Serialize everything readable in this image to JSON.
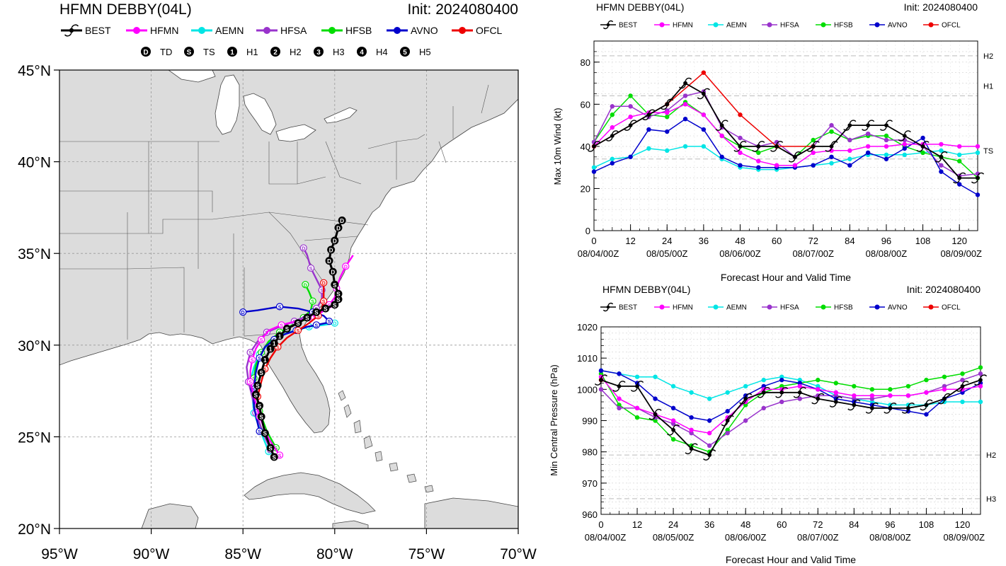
{
  "map": {
    "title": "HFMN DEBBY(04L)",
    "init": "Init: 2024080400",
    "legend": [
      {
        "name": "BEST",
        "color": "#000000"
      },
      {
        "name": "HFMN",
        "color": "#ff00ff"
      },
      {
        "name": "AEMN",
        "color": "#00e5e5"
      },
      {
        "name": "HFSA",
        "color": "#9933cc"
      },
      {
        "name": "HFSB",
        "color": "#00dd00"
      },
      {
        "name": "AVNO",
        "color": "#0000cc"
      },
      {
        "name": "OFCL",
        "color": "#ee0000"
      }
    ],
    "intensity_legend": [
      {
        "symbol": "D",
        "label": "TD"
      },
      {
        "symbol": "S",
        "label": "TS"
      },
      {
        "symbol": "1",
        "label": "H1"
      },
      {
        "symbol": "2",
        "label": "H2"
      },
      {
        "symbol": "3",
        "label": "H3"
      },
      {
        "symbol": "4",
        "label": "H4"
      },
      {
        "symbol": "5",
        "label": "H5"
      }
    ],
    "lat_ticks": [
      "20°N",
      "25°N",
      "30°N",
      "35°N",
      "40°N",
      "45°N"
    ],
    "lon_ticks": [
      "95°W",
      "90°W",
      "85°W",
      "80°W",
      "75°W",
      "70°W"
    ],
    "lat_range": [
      20,
      45
    ],
    "lon_range": [
      -95,
      -70
    ],
    "tracks": {
      "BEST": [
        [
          -83.3,
          23.9
        ],
        [
          -83.5,
          24.4
        ],
        [
          -83.8,
          25.2
        ],
        [
          -84.0,
          26.1
        ],
        [
          -84.1,
          26.7
        ],
        [
          -84.3,
          27.3
        ],
        [
          -84.2,
          27.8
        ],
        [
          -84.0,
          28.5
        ],
        [
          -83.8,
          29.2
        ],
        [
          -83.5,
          29.8
        ],
        [
          -83.3,
          30.1
        ],
        [
          -83.0,
          30.5
        ],
        [
          -82.6,
          30.9
        ],
        [
          -82.0,
          31.2
        ],
        [
          -81.5,
          31.5
        ],
        [
          -81.0,
          31.8
        ],
        [
          -80.5,
          32.0
        ],
        [
          -80.0,
          32.2
        ],
        [
          -79.8,
          32.5
        ],
        [
          -79.8,
          32.8
        ],
        [
          -80.0,
          33.3
        ],
        [
          -80.1,
          34.0
        ],
        [
          -80.3,
          34.6
        ],
        [
          -80.2,
          35.2
        ],
        [
          -80.0,
          35.7
        ],
        [
          -79.8,
          36.4
        ],
        [
          -79.6,
          36.8
        ]
      ],
      "HFMN": [
        [
          -83.0,
          24.0
        ],
        [
          -83.6,
          24.9
        ],
        [
          -84.1,
          26.1
        ],
        [
          -84.4,
          27.2
        ],
        [
          -84.6,
          28.0
        ],
        [
          -84.6,
          28.6
        ],
        [
          -84.5,
          29.2
        ],
        [
          -84.3,
          29.8
        ],
        [
          -84.0,
          30.3
        ],
        [
          -83.6,
          30.8
        ],
        [
          -82.9,
          31.1
        ],
        [
          -82.1,
          31.3
        ],
        [
          -81.3,
          31.5
        ],
        [
          -80.7,
          31.8
        ],
        [
          -80.3,
          32.2
        ],
        [
          -80.0,
          32.6
        ],
        [
          -79.9,
          33.1
        ],
        [
          -79.7,
          33.7
        ],
        [
          -79.4,
          34.3
        ],
        [
          -79.0,
          34.9
        ]
      ],
      "AEMN": [
        [
          -83.6,
          24.2
        ],
        [
          -84.0,
          25.2
        ],
        [
          -84.4,
          26.3
        ],
        [
          -84.5,
          27.3
        ],
        [
          -84.6,
          28.0
        ],
        [
          -84.4,
          28.8
        ],
        [
          -84.1,
          29.5
        ],
        [
          -83.6,
          30.1
        ],
        [
          -83.0,
          30.5
        ],
        [
          -82.2,
          30.8
        ],
        [
          -81.4,
          31.0
        ],
        [
          -80.6,
          31.1
        ],
        [
          -80.0,
          31.2
        ]
      ],
      "HFSA": [
        [
          -83.5,
          24.3
        ],
        [
          -83.9,
          25.2
        ],
        [
          -84.3,
          26.3
        ],
        [
          -84.5,
          27.2
        ],
        [
          -84.7,
          28.0
        ],
        [
          -84.8,
          28.8
        ],
        [
          -84.6,
          29.6
        ],
        [
          -84.2,
          30.2
        ],
        [
          -83.7,
          30.7
        ],
        [
          -83.0,
          31.0
        ],
        [
          -82.2,
          31.3
        ],
        [
          -81.5,
          31.6
        ],
        [
          -81.0,
          32.0
        ],
        [
          -80.7,
          32.5
        ],
        [
          -80.7,
          33.0
        ],
        [
          -81.0,
          33.6
        ],
        [
          -81.3,
          34.2
        ],
        [
          -81.5,
          34.9
        ],
        [
          -81.7,
          35.3
        ]
      ],
      "HFSB": [
        [
          -83.2,
          24.4
        ],
        [
          -83.7,
          25.3
        ],
        [
          -84.1,
          26.4
        ],
        [
          -84.3,
          27.4
        ],
        [
          -84.4,
          28.2
        ],
        [
          -84.3,
          28.9
        ],
        [
          -84.0,
          29.6
        ],
        [
          -83.6,
          30.2
        ],
        [
          -83.0,
          30.7
        ],
        [
          -82.3,
          31.1
        ],
        [
          -81.7,
          31.5
        ],
        [
          -81.3,
          31.9
        ],
        [
          -81.2,
          32.4
        ],
        [
          -81.4,
          32.9
        ],
        [
          -81.6,
          33.3
        ]
      ],
      "AVNO": [
        [
          -84.1,
          25.3
        ],
        [
          -84.4,
          26.6
        ],
        [
          -84.4,
          27.6
        ],
        [
          -84.3,
          28.5
        ],
        [
          -84.1,
          29.3
        ],
        [
          -83.8,
          29.9
        ],
        [
          -83.3,
          30.3
        ],
        [
          -82.7,
          30.6
        ],
        [
          -82.1,
          30.8
        ],
        [
          -81.5,
          31.0
        ],
        [
          -81.0,
          31.1
        ],
        [
          -80.5,
          31.2
        ],
        [
          -80.3,
          31.3
        ],
        [
          -80.6,
          31.6
        ],
        [
          -81.2,
          31.8
        ],
        [
          -82.0,
          32.0
        ],
        [
          -83.0,
          32.1
        ],
        [
          -84.2,
          31.9
        ],
        [
          -85.0,
          31.8
        ]
      ],
      "OFCL": [
        [
          -84.2,
          27.2
        ],
        [
          -84.0,
          28.0
        ],
        [
          -83.8,
          28.7
        ],
        [
          -83.5,
          29.3
        ],
        [
          -83.1,
          29.9
        ],
        [
          -82.6,
          30.4
        ],
        [
          -82.0,
          30.8
        ],
        [
          -81.4,
          31.2
        ],
        [
          -80.9,
          31.6
        ],
        [
          -80.7,
          32.0
        ],
        [
          -80.6,
          32.4
        ],
        [
          -80.6,
          32.9
        ],
        [
          -80.6,
          33.4
        ]
      ]
    }
  },
  "wind": {
    "title": "HFMN DEBBY(04L)",
    "init": "Init: 2024080400",
    "ylabel": "Max 10m Wind (kt)",
    "xlabel": "Forecast Hour and Valid Time",
    "ylim": [
      0,
      90
    ],
    "yticks": [
      "0",
      "20",
      "40",
      "60",
      "80"
    ],
    "xticks": [
      "0",
      "12",
      "24",
      "36",
      "48",
      "60",
      "72",
      "84",
      "96",
      "108",
      "120"
    ],
    "date_ticks": [
      "08/04/00Z",
      "08/05/00Z",
      "08/06/00Z",
      "08/07/00Z",
      "08/08/00Z",
      "08/09/00Z"
    ],
    "categories": [
      "H2",
      "H1",
      "TS"
    ]
  },
  "pres": {
    "title": "HFMN DEBBY(04L)",
    "init": "Init: 2024080400",
    "ylabel": "Min Central Pressure (hPa)",
    "xlabel": "Forecast Hour and Valid Time",
    "ylim": [
      960,
      1020
    ],
    "yticks": [
      "960",
      "970",
      "980",
      "990",
      "1000",
      "1010",
      "1020"
    ],
    "xticks": [
      "0",
      "12",
      "24",
      "36",
      "48",
      "60",
      "72",
      "84",
      "96",
      "108",
      "120"
    ],
    "date_ticks": [
      "08/04/00Z",
      "08/05/00Z",
      "08/06/00Z",
      "08/07/00Z",
      "08/08/00Z",
      "08/09/00Z"
    ],
    "categories": [
      "H2",
      "H3"
    ]
  },
  "chart_data": [
    {
      "type": "line",
      "title": "HFMN DEBBY(04L)",
      "ylabel": "Max 10m Wind (kt)",
      "xlabel": "Forecast Hour and Valid Time",
      "xlim": [
        0,
        126
      ],
      "ylim": [
        0,
        90
      ],
      "x": [
        0,
        6,
        12,
        18,
        24,
        30,
        36,
        42,
        48,
        54,
        60,
        66,
        72,
        78,
        84,
        90,
        96,
        102,
        108,
        114,
        120,
        126
      ],
      "series": [
        {
          "name": "BEST",
          "color": "#000000",
          "values": [
            40,
            45,
            50,
            55,
            60,
            70,
            65,
            50,
            40,
            40,
            40,
            35,
            40,
            40,
            50,
            50,
            50,
            45,
            40,
            35,
            25,
            25
          ]
        },
        {
          "name": "HFMN",
          "color": "#ff00ff",
          "values": [
            40,
            49,
            54,
            56,
            56,
            60,
            55,
            45,
            37,
            33,
            31,
            31,
            37,
            38,
            38,
            40,
            40,
            41,
            41,
            41,
            40,
            40
          ]
        },
        {
          "name": "AEMN",
          "color": "#00e5e5",
          "values": [
            30,
            34,
            35,
            39,
            38,
            40,
            40,
            34,
            30,
            29,
            29,
            30,
            31,
            32,
            34,
            36,
            36,
            36,
            37,
            38,
            36,
            37
          ]
        },
        {
          "name": "HFSA",
          "color": "#9933cc",
          "values": [
            42,
            59,
            59,
            54,
            57,
            64,
            66,
            49,
            44,
            40,
            42,
            35,
            40,
            50,
            43,
            46,
            43,
            43,
            40,
            31,
            26,
            27
          ]
        },
        {
          "name": "HFSB",
          "color": "#00dd00",
          "values": [
            42,
            55,
            64,
            55,
            54,
            61,
            55,
            45,
            40,
            37,
            40,
            35,
            43,
            47,
            43,
            45,
            45,
            40,
            37,
            35,
            33,
            25
          ]
        },
        {
          "name": "AVNO",
          "color": "#0000cc",
          "values": [
            28,
            32,
            35,
            48,
            47,
            53,
            48,
            35,
            31,
            30,
            30,
            30,
            31,
            35,
            31,
            37,
            34,
            39,
            44,
            28,
            22,
            17
          ]
        },
        {
          "name": "OFCL",
          "color": "#ee0000",
          "values": [
            40,
            null,
            null,
            null,
            60,
            null,
            75,
            null,
            55,
            null,
            40,
            null,
            40,
            null,
            null,
            null,
            null,
            null,
            null,
            null,
            null,
            null
          ]
        }
      ]
    },
    {
      "type": "line",
      "title": "HFMN DEBBY(04L)",
      "ylabel": "Min Central Pressure (hPa)",
      "xlabel": "Forecast Hour and Valid Time",
      "xlim": [
        0,
        126
      ],
      "ylim": [
        960,
        1020
      ],
      "x": [
        0,
        6,
        12,
        18,
        24,
        30,
        36,
        42,
        48,
        54,
        60,
        66,
        72,
        78,
        84,
        90,
        96,
        102,
        108,
        114,
        120,
        126
      ],
      "series": [
        {
          "name": "BEST",
          "color": "#000000",
          "values": [
            1003,
            1001,
            1001,
            992,
            987,
            981,
            979,
            990,
            997,
            999,
            999,
            999,
            997,
            996,
            995,
            994,
            994,
            994,
            995,
            997,
            1001,
            1003
          ]
        },
        {
          "name": "HFMN",
          "color": "#ff00ff",
          "values": [
            1004,
            997,
            994,
            992,
            990,
            987,
            986,
            991,
            996,
            1000,
            1000,
            1001,
            1000,
            999,
            998,
            998,
            998,
            998,
            999,
            1000,
            1000,
            1001
          ]
        },
        {
          "name": "AEMN",
          "color": "#00e5e5",
          "values": [
            1006,
            1005,
            1004,
            1004,
            1001,
            999,
            997,
            999,
            1001,
            1003,
            1004,
            1003,
            1001,
            998,
            997,
            996,
            995,
            995,
            995,
            996,
            996,
            996
          ]
        },
        {
          "name": "HFSA",
          "color": "#9933cc",
          "values": [
            1000,
            994,
            994,
            991,
            989,
            986,
            982,
            986,
            990,
            994,
            996,
            997,
            998,
            998,
            997,
            997,
            998,
            998,
            999,
            1001,
            1003,
            1005
          ]
        },
        {
          "name": "HFSB",
          "color": "#00dd00",
          "values": [
            1005,
            995,
            991,
            990,
            984,
            982,
            980,
            987,
            995,
            999,
            1001,
            1002,
            1003,
            1002,
            1001,
            1000,
            1000,
            1001,
            1003,
            1004,
            1005,
            1007
          ]
        },
        {
          "name": "AVNO",
          "color": "#0000cc",
          "values": [
            1006,
            1005,
            1002,
            997,
            994,
            991,
            990,
            993,
            998,
            1001,
            1003,
            1002,
            1000,
            997,
            996,
            995,
            994,
            993,
            992,
            997,
            999,
            1002
          ]
        },
        {
          "name": "OFCL",
          "color": "#ee0000",
          "values": [
            1003,
            null,
            null,
            null,
            null,
            null,
            null,
            null,
            null,
            null,
            null,
            null,
            null,
            null,
            null,
            null,
            null,
            null,
            null,
            null,
            null,
            null
          ]
        }
      ]
    }
  ]
}
